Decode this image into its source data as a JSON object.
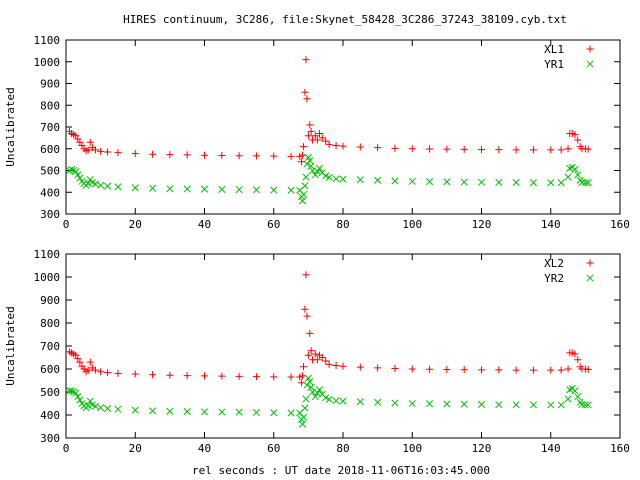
{
  "title": "HIRES continuum, 3C286, file:Skynet_58428_3C286_37243_38109.cyb.txt",
  "xlabel": "rel seconds : UT date 2018-11-06T16:03:45.000",
  "colors": {
    "red": "#ff0000",
    "green": "#00c000",
    "axis": "#000000"
  },
  "chart_data": [
    {
      "type": "scatter",
      "ylabel": "Uncalibrated",
      "xlim": [
        0,
        160
      ],
      "ylim": [
        300,
        1100
      ],
      "xticks": [
        0,
        20,
        40,
        60,
        80,
        100,
        120,
        140,
        160
      ],
      "yticks": [
        300,
        400,
        500,
        600,
        700,
        800,
        900,
        1000,
        1100
      ],
      "legend_position": "top-right",
      "series": [
        {
          "name": "XL1",
          "marker": "plus",
          "color": "#ff0000",
          "points": [
            [
              1,
              680
            ],
            [
              1.6,
              670
            ],
            [
              2.2,
              665
            ],
            [
              2.8,
              660
            ],
            [
              3.4,
              645
            ],
            [
              4,
              630
            ],
            [
              4.6,
              615
            ],
            [
              5.2,
              600
            ],
            [
              5.8,
              590
            ],
            [
              6.4,
              595
            ],
            [
              7,
              630
            ],
            [
              7.6,
              605
            ],
            [
              8.5,
              595
            ],
            [
              10,
              588
            ],
            [
              12,
              585
            ],
            [
              15,
              582
            ],
            [
              20,
              578
            ],
            [
              25,
              575
            ],
            [
              30,
              573
            ],
            [
              35,
              572
            ],
            [
              40,
              570
            ],
            [
              45,
              569
            ],
            [
              50,
              568
            ],
            [
              55,
              567
            ],
            [
              60,
              566
            ],
            [
              65,
              565
            ],
            [
              67.5,
              565
            ],
            [
              68,
              540
            ],
            [
              68.3,
              570
            ],
            [
              68.6,
              610
            ],
            [
              69,
              860
            ],
            [
              69.3,
              1010
            ],
            [
              69.6,
              830
            ],
            [
              70,
              660
            ],
            [
              70.4,
              710
            ],
            [
              70.8,
              680
            ],
            [
              71.2,
              640
            ],
            [
              72,
              660
            ],
            [
              72.6,
              640
            ],
            [
              73.2,
              670
            ],
            [
              74,
              650
            ],
            [
              75,
              635
            ],
            [
              76,
              620
            ],
            [
              78,
              615
            ],
            [
              80,
              612
            ],
            [
              85,
              608
            ],
            [
              90,
              605
            ],
            [
              95,
              602
            ],
            [
              100,
              600
            ],
            [
              105,
              599
            ],
            [
              110,
              598
            ],
            [
              115,
              597
            ],
            [
              120,
              596
            ],
            [
              125,
              596
            ],
            [
              130,
              595
            ],
            [
              135,
              595
            ],
            [
              140,
              595
            ],
            [
              143,
              595
            ],
            [
              145,
              600
            ],
            [
              145.5,
              670
            ],
            [
              146.2,
              670
            ],
            [
              147,
              665
            ],
            [
              147.8,
              640
            ],
            [
              148.5,
              610
            ],
            [
              149,
              600
            ],
            [
              150,
              600
            ],
            [
              150.8,
              598
            ]
          ]
        },
        {
          "name": "YR1",
          "marker": "x",
          "color": "#00c000",
          "points": [
            [
              1,
              500
            ],
            [
              1.6,
              505
            ],
            [
              2.2,
              500
            ],
            [
              2.8,
              495
            ],
            [
              3.4,
              480
            ],
            [
              4,
              465
            ],
            [
              4.6,
              450
            ],
            [
              5.2,
              440
            ],
            [
              5.8,
              432
            ],
            [
              6.4,
              440
            ],
            [
              7,
              458
            ],
            [
              7.6,
              445
            ],
            [
              8.5,
              438
            ],
            [
              10,
              432
            ],
            [
              12,
              428
            ],
            [
              15,
              425
            ],
            [
              20,
              421
            ],
            [
              25,
              418
            ],
            [
              30,
              416
            ],
            [
              35,
              415
            ],
            [
              40,
              414
            ],
            [
              45,
              413
            ],
            [
              50,
              412
            ],
            [
              55,
              411
            ],
            [
              60,
              410
            ],
            [
              65,
              409
            ],
            [
              67.5,
              409
            ],
            [
              68,
              380
            ],
            [
              68.3,
              360
            ],
            [
              68.6,
              390
            ],
            [
              69,
              430
            ],
            [
              69.3,
              470
            ],
            [
              69.6,
              530
            ],
            [
              70,
              560
            ],
            [
              70.4,
              545
            ],
            [
              70.8,
              520
            ],
            [
              71.2,
              500
            ],
            [
              72,
              480
            ],
            [
              72.6,
              495
            ],
            [
              73.2,
              510
            ],
            [
              74,
              490
            ],
            [
              75,
              475
            ],
            [
              76,
              468
            ],
            [
              78,
              462
            ],
            [
              80,
              460
            ],
            [
              85,
              458
            ],
            [
              90,
              455
            ],
            [
              95,
              452
            ],
            [
              100,
              450
            ],
            [
              105,
              449
            ],
            [
              110,
              448
            ],
            [
              115,
              447
            ],
            [
              120,
              446
            ],
            [
              125,
              445
            ],
            [
              130,
              445
            ],
            [
              135,
              444
            ],
            [
              140,
              444
            ],
            [
              143,
              444
            ],
            [
              145,
              470
            ],
            [
              145.5,
              510
            ],
            [
              146.2,
              515
            ],
            [
              147,
              505
            ],
            [
              147.8,
              480
            ],
            [
              148.5,
              455
            ],
            [
              149,
              445
            ],
            [
              150,
              444
            ],
            [
              150.8,
              444
            ]
          ]
        }
      ]
    },
    {
      "type": "scatter",
      "ylabel": "Uncalibrated",
      "xlim": [
        0,
        160
      ],
      "ylim": [
        300,
        1100
      ],
      "xticks": [
        0,
        20,
        40,
        60,
        80,
        100,
        120,
        140,
        160
      ],
      "yticks": [
        300,
        400,
        500,
        600,
        700,
        800,
        900,
        1000,
        1100
      ],
      "legend_position": "top-right",
      "series": [
        {
          "name": "XL2",
          "marker": "plus",
          "color": "#ff0000",
          "points": [
            [
              1,
              675
            ],
            [
              1.6,
              670
            ],
            [
              2.2,
              665
            ],
            [
              2.8,
              660
            ],
            [
              3.4,
              645
            ],
            [
              4,
              630
            ],
            [
              4.6,
              612
            ],
            [
              5.2,
              600
            ],
            [
              5.8,
              588
            ],
            [
              6.4,
              595
            ],
            [
              7,
              630
            ],
            [
              7.6,
              605
            ],
            [
              8.5,
              595
            ],
            [
              10,
              588
            ],
            [
              12,
              584
            ],
            [
              15,
              581
            ],
            [
              20,
              578
            ],
            [
              25,
              575
            ],
            [
              30,
              573
            ],
            [
              35,
              571
            ],
            [
              40,
              570
            ],
            [
              45,
              569
            ],
            [
              50,
              568
            ],
            [
              55,
              567
            ],
            [
              60,
              566
            ],
            [
              65,
              565
            ],
            [
              67.5,
              565
            ],
            [
              68,
              540
            ],
            [
              68.3,
              570
            ],
            [
              68.6,
              610
            ],
            [
              69,
              860
            ],
            [
              69.3,
              1010
            ],
            [
              69.6,
              830
            ],
            [
              70,
              660
            ],
            [
              70.4,
              755
            ],
            [
              70.8,
              680
            ],
            [
              71.2,
              640
            ],
            [
              72,
              665
            ],
            [
              72.6,
              640
            ],
            [
              73.2,
              660
            ],
            [
              74,
              650
            ],
            [
              75,
              635
            ],
            [
              76,
              620
            ],
            [
              78,
              615
            ],
            [
              80,
              612
            ],
            [
              85,
              608
            ],
            [
              90,
              605
            ],
            [
              95,
              602
            ],
            [
              100,
              600
            ],
            [
              105,
              599
            ],
            [
              110,
              598
            ],
            [
              115,
              597
            ],
            [
              120,
              596
            ],
            [
              125,
              596
            ],
            [
              130,
              595
            ],
            [
              135,
              595
            ],
            [
              140,
              595
            ],
            [
              143,
              595
            ],
            [
              145,
              600
            ],
            [
              145.5,
              670
            ],
            [
              146.2,
              670
            ],
            [
              147,
              665
            ],
            [
              147.8,
              640
            ],
            [
              148.5,
              610
            ],
            [
              149,
              600
            ],
            [
              150,
              600
            ],
            [
              150.8,
              598
            ]
          ]
        },
        {
          "name": "YR2",
          "marker": "x",
          "color": "#00c000",
          "points": [
            [
              1,
              505
            ],
            [
              1.6,
              505
            ],
            [
              2.2,
              500
            ],
            [
              2.8,
              495
            ],
            [
              3.4,
              480
            ],
            [
              4,
              465
            ],
            [
              4.6,
              450
            ],
            [
              5.2,
              440
            ],
            [
              5.8,
              432
            ],
            [
              6.4,
              440
            ],
            [
              7,
              460
            ],
            [
              7.6,
              445
            ],
            [
              8.5,
              438
            ],
            [
              10,
              432
            ],
            [
              12,
              428
            ],
            [
              15,
              425
            ],
            [
              20,
              421
            ],
            [
              25,
              418
            ],
            [
              30,
              416
            ],
            [
              35,
              415
            ],
            [
              40,
              414
            ],
            [
              45,
              413
            ],
            [
              50,
              412
            ],
            [
              55,
              411
            ],
            [
              60,
              410
            ],
            [
              65,
              409
            ],
            [
              67.5,
              409
            ],
            [
              68,
              380
            ],
            [
              68.3,
              360
            ],
            [
              68.6,
              390
            ],
            [
              69,
              430
            ],
            [
              69.3,
              470
            ],
            [
              69.6,
              530
            ],
            [
              70,
              560
            ],
            [
              70.4,
              545
            ],
            [
              70.8,
              520
            ],
            [
              71.2,
              500
            ],
            [
              72,
              480
            ],
            [
              72.6,
              495
            ],
            [
              73.2,
              510
            ],
            [
              74,
              490
            ],
            [
              75,
              475
            ],
            [
              76,
              468
            ],
            [
              78,
              462
            ],
            [
              80,
              460
            ],
            [
              85,
              458
            ],
            [
              90,
              455
            ],
            [
              95,
              452
            ],
            [
              100,
              450
            ],
            [
              105,
              449
            ],
            [
              110,
              448
            ],
            [
              115,
              447
            ],
            [
              120,
              446
            ],
            [
              125,
              445
            ],
            [
              130,
              445
            ],
            [
              135,
              444
            ],
            [
              140,
              444
            ],
            [
              143,
              444
            ],
            [
              145,
              470
            ],
            [
              145.5,
              510
            ],
            [
              146.2,
              515
            ],
            [
              147,
              505
            ],
            [
              147.8,
              480
            ],
            [
              148.5,
              455
            ],
            [
              149,
              445
            ],
            [
              150,
              444
            ],
            [
              150.8,
              444
            ]
          ]
        }
      ]
    }
  ]
}
